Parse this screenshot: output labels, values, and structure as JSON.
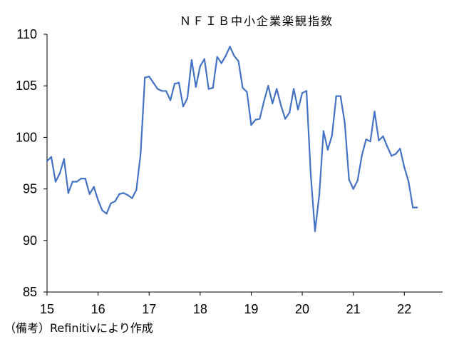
{
  "chart_data": {
    "type": "line",
    "title": "ＮＦＩＢ中小企業楽観指数",
    "xlabel": "",
    "ylabel": "",
    "ylim": [
      85,
      110
    ],
    "yticks": [
      "85",
      "90",
      "95",
      "100",
      "105",
      "110"
    ],
    "xlim": [
      2015,
      2022.75
    ],
    "xticks": [
      {
        "label": "15",
        "x": 2015
      },
      {
        "label": "16",
        "x": 2016
      },
      {
        "label": "17",
        "x": 2017
      },
      {
        "label": "18",
        "x": 2018
      },
      {
        "label": "19",
        "x": 2019
      },
      {
        "label": "20",
        "x": 2020
      },
      {
        "label": "21",
        "x": 2021
      },
      {
        "label": "22",
        "x": 2022
      }
    ],
    "grid": false,
    "legend": "none",
    "line_color": "#4472C4",
    "series": [
      {
        "start_year": 2015,
        "values": [
          97.7,
          98.1,
          95.7,
          96.5,
          97.9,
          94.6,
          95.7,
          95.7,
          96.0,
          96.0,
          94.5,
          95.2,
          93.9,
          92.9,
          92.6,
          93.6,
          93.8,
          94.5,
          94.6,
          94.4,
          94.1,
          94.9,
          98.4,
          105.8,
          105.9,
          105.3,
          104.7,
          104.5,
          104.5,
          103.6,
          105.2,
          105.3,
          103.0,
          103.8,
          107.5,
          104.9,
          106.9,
          107.6,
          104.7,
          104.8,
          107.8,
          107.2,
          107.9,
          108.8,
          107.9,
          107.4,
          104.8,
          104.4,
          101.2,
          101.7,
          101.8,
          103.5,
          105.0,
          103.3,
          104.7,
          103.1,
          101.8,
          102.4,
          104.7,
          102.7,
          104.3,
          104.5,
          96.4,
          90.9,
          94.4,
          100.6,
          98.8,
          100.2,
          104.0,
          104.0,
          101.4,
          95.9,
          95.0,
          95.8,
          98.2,
          99.8,
          99.6,
          102.5,
          99.7,
          100.1,
          99.1,
          98.2,
          98.4,
          98.9,
          97.1,
          95.7,
          93.2,
          93.2
        ]
      }
    ]
  },
  "footnote": "（備考）Refinitivにより作成"
}
